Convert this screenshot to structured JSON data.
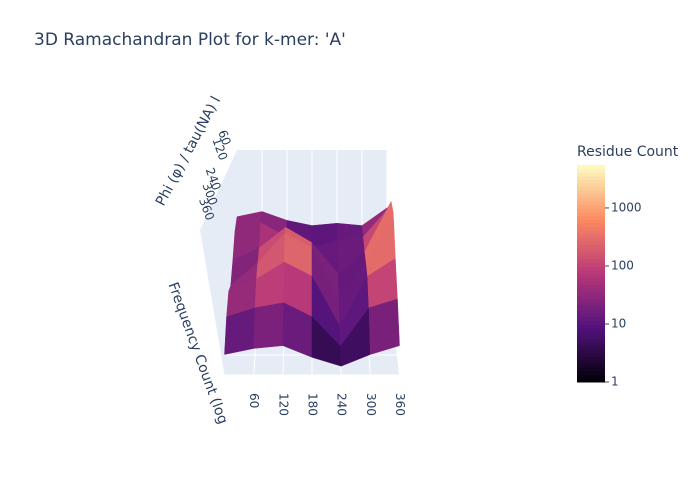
{
  "chart_data": {
    "type": "surface3d",
    "title": "3D Ramachandran Plot for k-mer: 'A'",
    "y_label": "Phi (φ) / tau(NA) l",
    "z_label": "Frequency Count (log",
    "colorbar_title": "Residue Count",
    "x": [
      0,
      60,
      120,
      180,
      240,
      300,
      360
    ],
    "y": [
      0,
      60,
      120,
      180,
      240,
      300,
      360
    ],
    "z": [
      [
        20,
        30,
        15,
        10,
        12,
        10,
        40
      ],
      [
        30,
        60,
        20,
        8,
        15,
        20,
        200
      ],
      [
        15,
        40,
        200,
        60,
        5,
        30,
        1500
      ],
      [
        10,
        60,
        600,
        200,
        3,
        60,
        3000
      ],
      [
        30,
        80,
        300,
        100,
        2,
        100,
        400
      ],
      [
        20,
        40,
        60,
        20,
        2,
        40,
        80
      ],
      [
        5,
        8,
        10,
        4,
        2,
        5,
        10
      ]
    ],
    "xlim": [
      0,
      360
    ],
    "xticks": [
      60,
      120,
      180,
      240,
      300,
      360
    ],
    "ylim": [
      0,
      360
    ],
    "yticks": [
      60,
      120,
      240,
      300,
      360
    ],
    "clim": [
      1,
      5500
    ],
    "cticks": [
      1,
      10,
      100,
      1000
    ],
    "color_log": true,
    "colorscale": [
      "#000004",
      "#51127c",
      "#b73779",
      "#fc8961",
      "#fcfdbf"
    ]
  }
}
